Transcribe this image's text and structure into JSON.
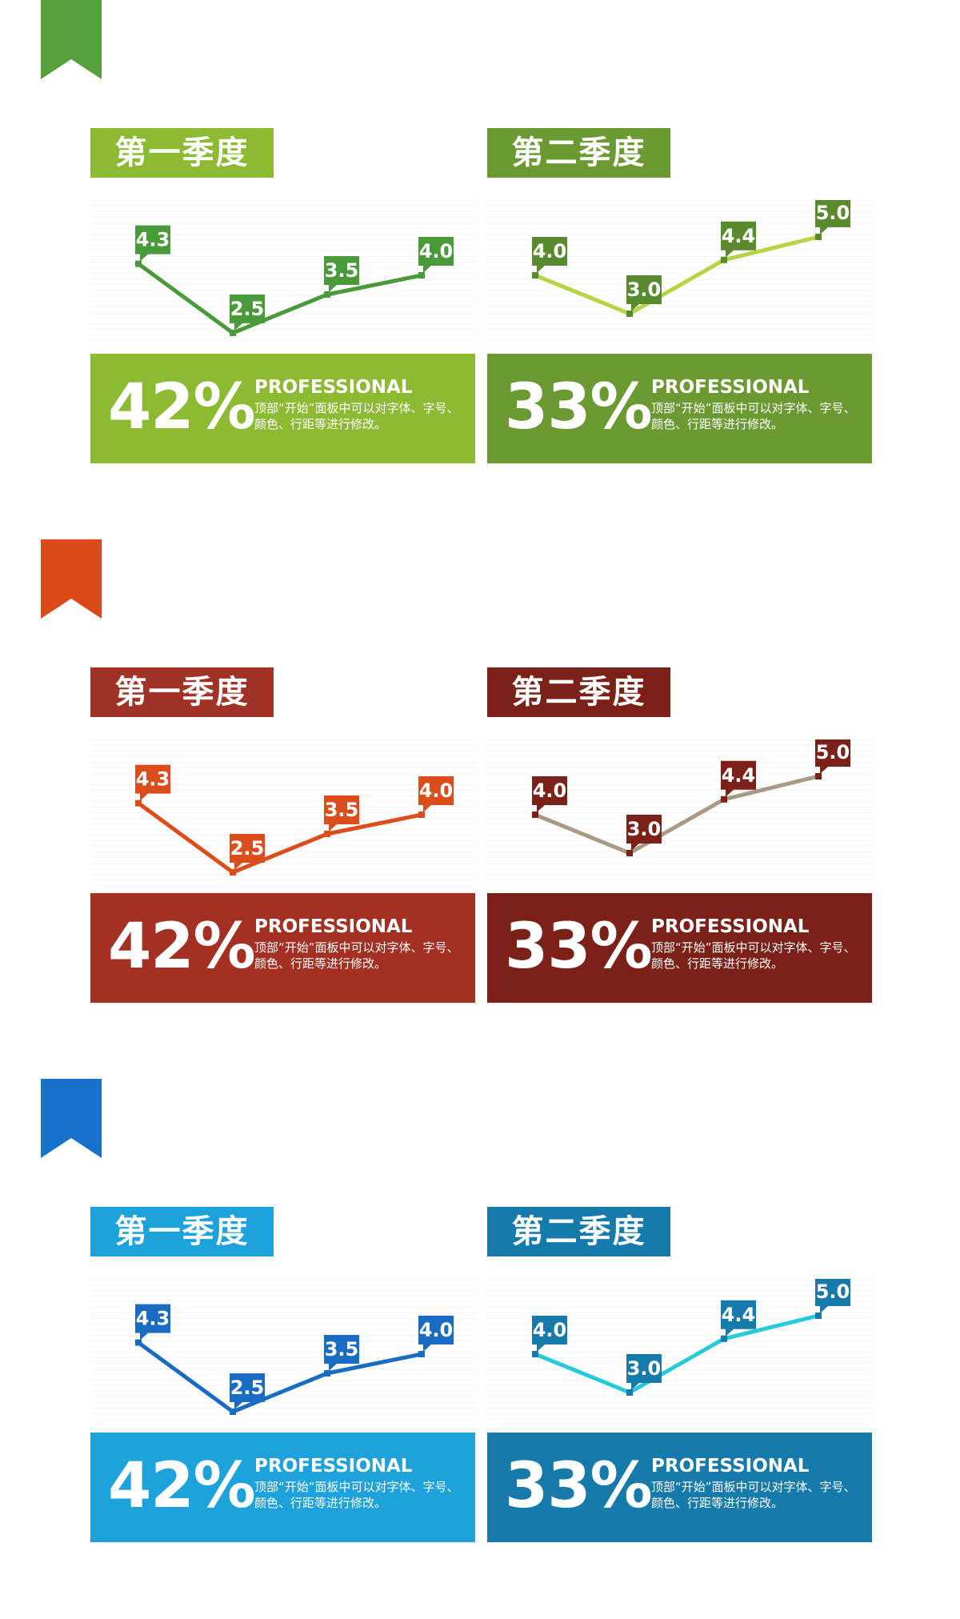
{
  "sections": [
    {
      "colors": {
        "bookmark": "#55a03a"
      },
      "q1": {
        "title": "第一季度",
        "colors": {
          "tag": "#8cba33",
          "line": "#4a9a3b",
          "label": "#4a9a3b",
          "box": "#8cba33"
        },
        "percent": "42%",
        "heading": "PROFESSIONAL",
        "desc": "顶部“开始”面板中可以对字体、字号、颜色、行距等进行修改。"
      },
      "q2": {
        "title": "第二季度",
        "colors": {
          "tag": "#6c9a32",
          "line": "#b6d545",
          "label": "#5a8a2e",
          "box": "#6c9a32"
        },
        "percent": "33%",
        "heading": "PROFESSIONAL",
        "desc": "顶部“开始”面板中可以对字体、字号、颜色、行距等进行修改。"
      }
    },
    {
      "colors": {
        "bookmark": "#dd4a1a"
      },
      "q1": {
        "title": "第一季度",
        "colors": {
          "tag": "#a13226",
          "line": "#db4d1b",
          "label": "#db4d1b",
          "box": "#a33023"
        },
        "percent": "42%",
        "heading": "PROFESSIONAL",
        "desc": "顶部“开始”面板中可以对字体、字号、颜色、行距等进行修改。"
      },
      "q2": {
        "title": "第二季度",
        "colors": {
          "tag": "#7b2118",
          "line": "#a99a86",
          "label": "#7b2118",
          "box": "#7b2118"
        },
        "percent": "33%",
        "heading": "PROFESSIONAL",
        "desc": "顶部“开始”面板中可以对字体、字号、颜色、行距等进行修改。"
      }
    },
    {
      "colors": {
        "bookmark": "#1872cc"
      },
      "q1": {
        "title": "第一季度",
        "colors": {
          "tag": "#1ea2dc",
          "line": "#1a6cc2",
          "label": "#1a6cc2",
          "box": "#1ea2dc"
        },
        "percent": "42%",
        "heading": "PROFESSIONAL",
        "desc": "顶部“开始”面板中可以对字体、字号、颜色、行距等进行修改。"
      },
      "q2": {
        "title": "第二季度",
        "colors": {
          "tag": "#167aaa",
          "line": "#28c9d9",
          "label": "#167aaa",
          "box": "#167aaa"
        },
        "percent": "33%",
        "heading": "PROFESSIONAL",
        "desc": "顶部“开始”面板中可以对字体、字号、颜色、行距等进行修改。"
      }
    }
  ],
  "chart_data": [
    {
      "type": "line",
      "title": "第一季度",
      "x": [
        1,
        2,
        3,
        4
      ],
      "values": [
        4.3,
        2.5,
        3.5,
        4.0
      ],
      "ylim": [
        2.5,
        5.0
      ],
      "grid": true
    },
    {
      "type": "line",
      "title": "第二季度",
      "x": [
        1,
        2,
        3,
        4
      ],
      "values": [
        4.0,
        3.0,
        4.4,
        5.0
      ],
      "ylim": [
        2.5,
        5.0
      ],
      "grid": true
    },
    {
      "type": "line",
      "title": "第一季度",
      "x": [
        1,
        2,
        3,
        4
      ],
      "values": [
        4.3,
        2.5,
        3.5,
        4.0
      ],
      "ylim": [
        2.5,
        5.0
      ],
      "grid": true
    },
    {
      "type": "line",
      "title": "第二季度",
      "x": [
        1,
        2,
        3,
        4
      ],
      "values": [
        4.0,
        3.0,
        4.4,
        5.0
      ],
      "ylim": [
        2.5,
        5.0
      ],
      "grid": true
    },
    {
      "type": "line",
      "title": "第一季度",
      "x": [
        1,
        2,
        3,
        4
      ],
      "values": [
        4.3,
        2.5,
        3.5,
        4.0
      ],
      "ylim": [
        2.5,
        5.0
      ],
      "grid": true
    },
    {
      "type": "line",
      "title": "第二季度",
      "x": [
        1,
        2,
        3,
        4
      ],
      "values": [
        4.0,
        3.0,
        4.4,
        5.0
      ],
      "ylim": [
        2.5,
        5.0
      ],
      "grid": true
    }
  ]
}
